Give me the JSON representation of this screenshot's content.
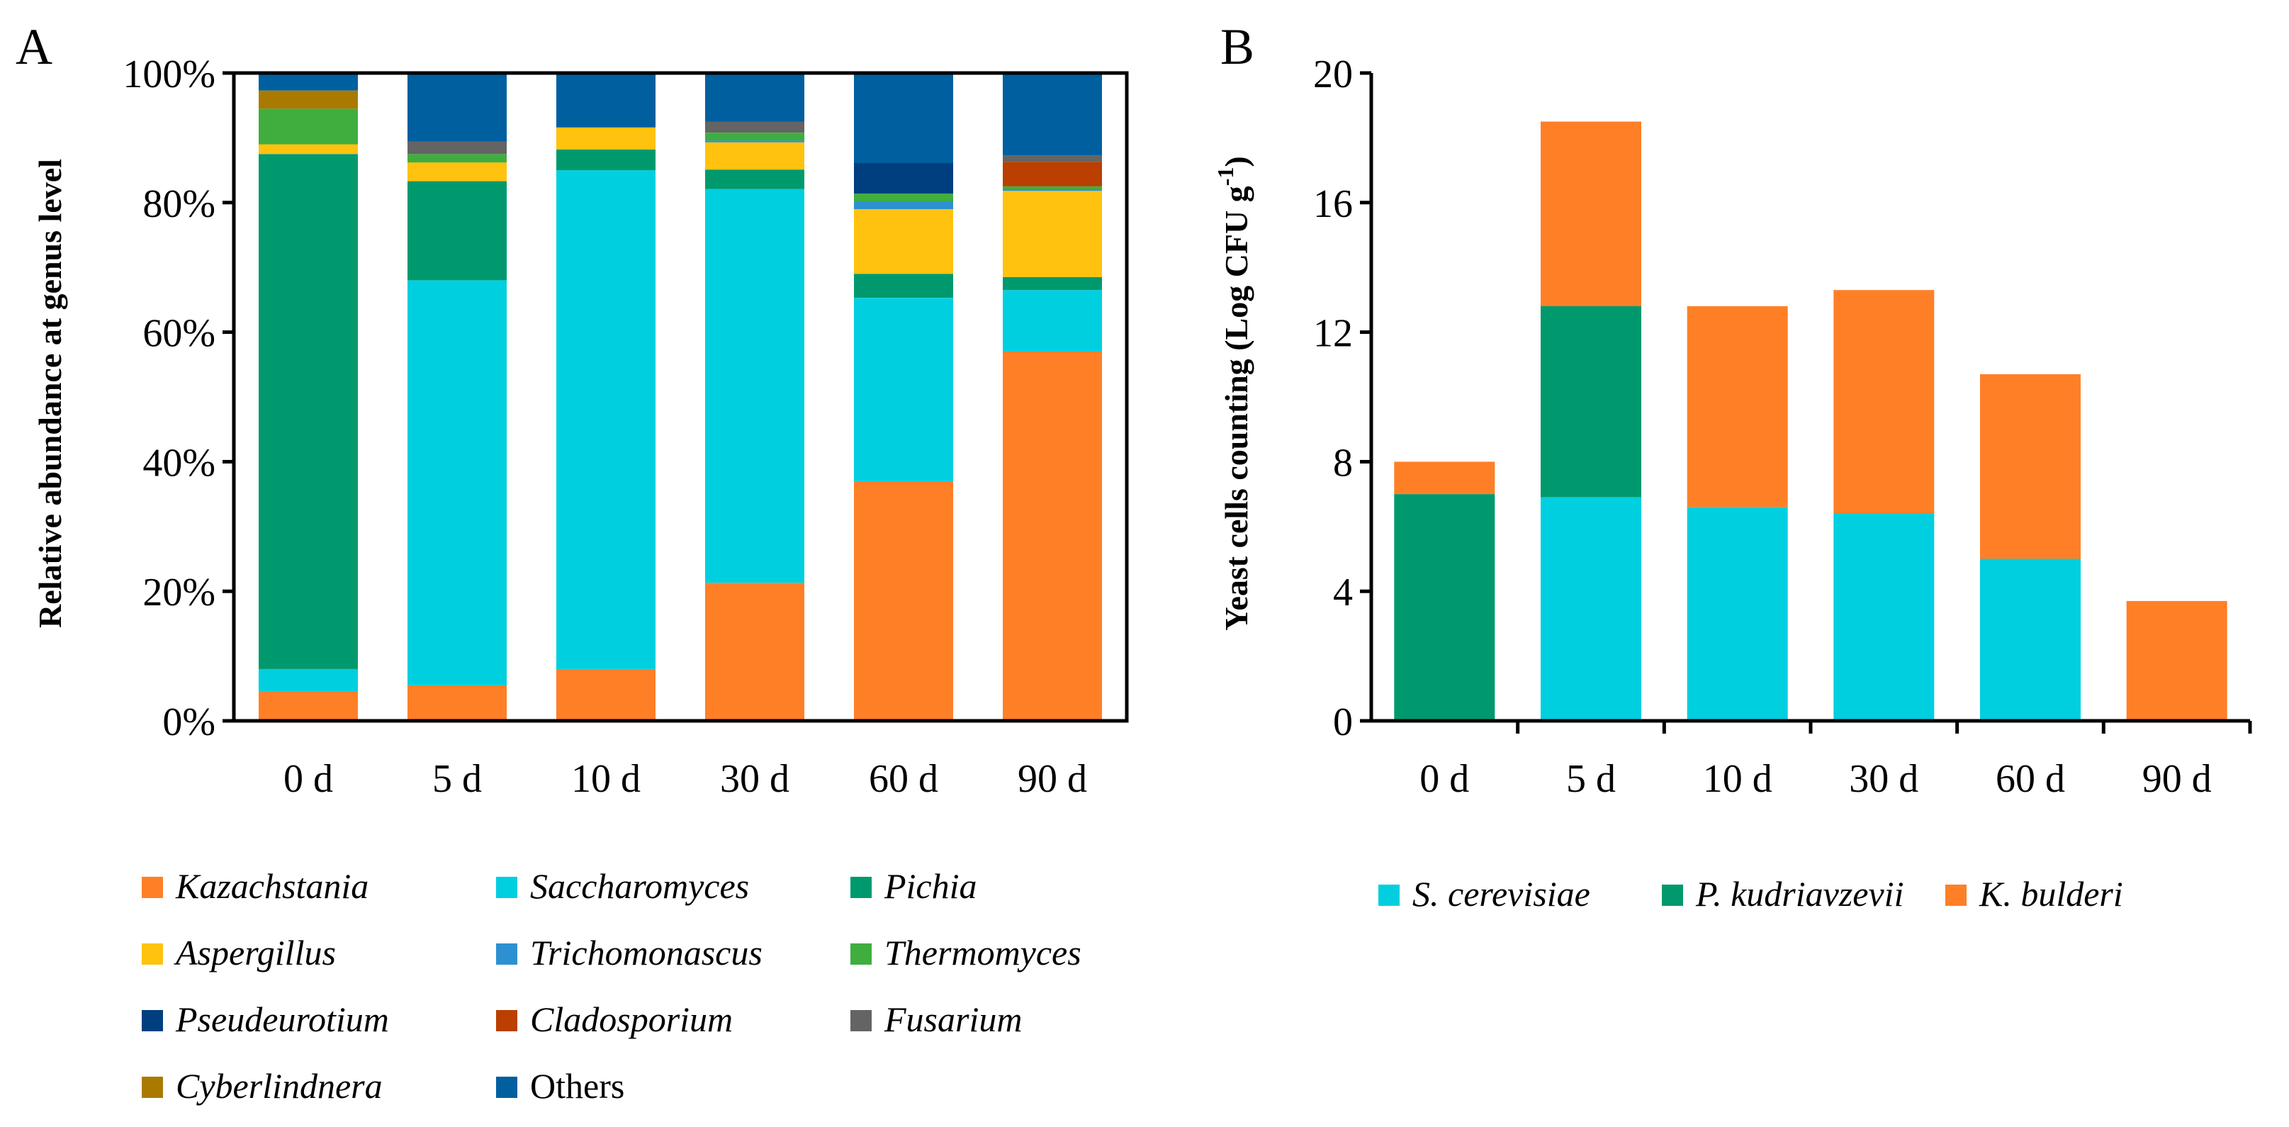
{
  "chart_data": [
    {
      "panel": "A",
      "type": "bar",
      "stacked": true,
      "categories": [
        "0 d",
        "5 d",
        "10 d",
        "30 d",
        "60 d",
        "90 d"
      ],
      "ylabel": "Relative abundance at genus level",
      "ylim": [
        0,
        100
      ],
      "yticks": [
        "0%",
        "20%",
        "40%",
        "60%",
        "80%",
        "100%"
      ],
      "legend_position": "bottom",
      "series": [
        {
          "name": "Kazachstania",
          "italic": true,
          "color": "#FF7F27",
          "values": [
            4.5,
            5.5,
            8,
            21.3,
            37,
            57
          ]
        },
        {
          "name": "Saccharomyces",
          "italic": true,
          "color": "#00CFDF",
          "values": [
            3.5,
            62.5,
            77,
            60.8,
            28.3,
            9.5
          ]
        },
        {
          "name": "Pichia",
          "italic": true,
          "color": "#00996E",
          "values": [
            79.5,
            15.3,
            3.2,
            3,
            3.7,
            2
          ]
        },
        {
          "name": "Aspergillus",
          "italic": true,
          "color": "#FFC20E",
          "values": [
            1.5,
            2.9,
            3.4,
            4.2,
            10,
            13.3
          ]
        },
        {
          "name": "Trichomonascus",
          "italic": true,
          "color": "#2D91D1",
          "values": [
            0,
            0,
            0,
            0.3,
            1.2,
            0.2
          ]
        },
        {
          "name": "Thermomyces",
          "italic": true,
          "color": "#3FAE3F",
          "values": [
            5.5,
            1.3,
            0,
            1.2,
            1.2,
            0.5
          ]
        },
        {
          "name": "Pseudeurotium",
          "italic": true,
          "color": "#003F7F",
          "values": [
            0,
            0,
            0,
            0,
            4.7,
            0
          ]
        },
        {
          "name": "Cladosporium",
          "italic": true,
          "color": "#BA3F00",
          "values": [
            0,
            0,
            0,
            0,
            0,
            3.8
          ]
        },
        {
          "name": "Fusarium",
          "italic": true,
          "color": "#646464",
          "values": [
            0,
            1.9,
            0,
            1.7,
            0,
            1
          ]
        },
        {
          "name": "Cyberlindnera",
          "italic": true,
          "color": "#AA7A00",
          "values": [
            2.8,
            0,
            0,
            0,
            0,
            0
          ]
        },
        {
          "name": "Others",
          "italic": false,
          "color": "#005F9F",
          "values": [
            2.7,
            10.6,
            8.4,
            7.5,
            13.9,
            12.7
          ]
        }
      ]
    },
    {
      "panel": "B",
      "type": "bar",
      "stacked": true,
      "categories": [
        "0 d",
        "5 d",
        "10 d",
        "30 d",
        "60 d",
        "90 d"
      ],
      "ylabel": "Yeast cells counting (Log CFU g",
      "ylabel_superscript": "-1",
      "ylabel_close": ")",
      "ylim": [
        0,
        20
      ],
      "yticks": [
        "0",
        "4",
        "8",
        "12",
        "16",
        "20"
      ],
      "legend_position": "bottom",
      "series": [
        {
          "name": "S. cerevisiae",
          "italic": true,
          "color": "#00CFDF",
          "values": [
            0,
            6.9,
            6.6,
            6.4,
            5,
            0
          ]
        },
        {
          "name": "P. kudriavzevii",
          "italic": true,
          "color": "#00996E",
          "values": [
            7,
            5.9,
            0,
            0,
            0,
            0
          ]
        },
        {
          "name": "K. bulderi",
          "italic": true,
          "color": "#FF7F27",
          "values": [
            1,
            5.7,
            6.2,
            6.9,
            5.7,
            3.7
          ]
        }
      ]
    }
  ]
}
